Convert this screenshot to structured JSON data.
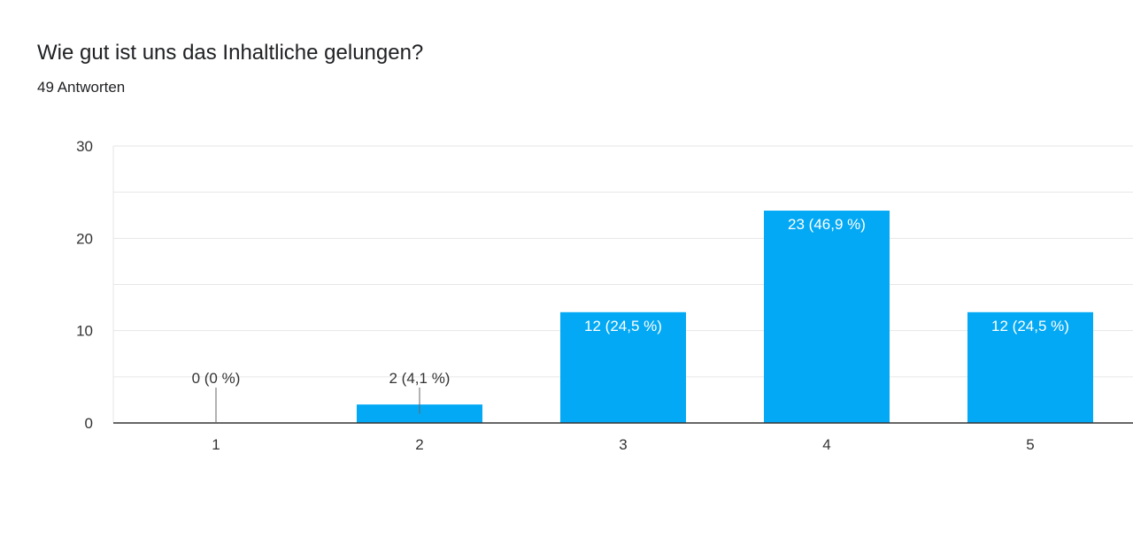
{
  "header": {
    "question": "Wie gut ist uns das Inhaltliche gelungen?",
    "responses": "49 Antworten"
  },
  "colors": {
    "bar": "#03a9f4",
    "grid": "#e6e6e6",
    "axis": "#333333",
    "text": "#333333",
    "inside_label": "#ffffff"
  },
  "chart_data": {
    "type": "bar",
    "title": "Wie gut ist uns das Inhaltliche gelungen?",
    "xlabel": "",
    "ylabel": "",
    "categories": [
      "1",
      "2",
      "3",
      "4",
      "5"
    ],
    "values": [
      0,
      2,
      12,
      23,
      12
    ],
    "data_labels": [
      "0 (0 %)",
      "2 (4,1 %)",
      "12 (24,5 %)",
      "23 (46,9 %)",
      "12 (24,5 %)"
    ],
    "ylim": [
      0,
      30
    ],
    "yticks": [
      0,
      10,
      20,
      30
    ],
    "grid": true,
    "legend": "none"
  }
}
